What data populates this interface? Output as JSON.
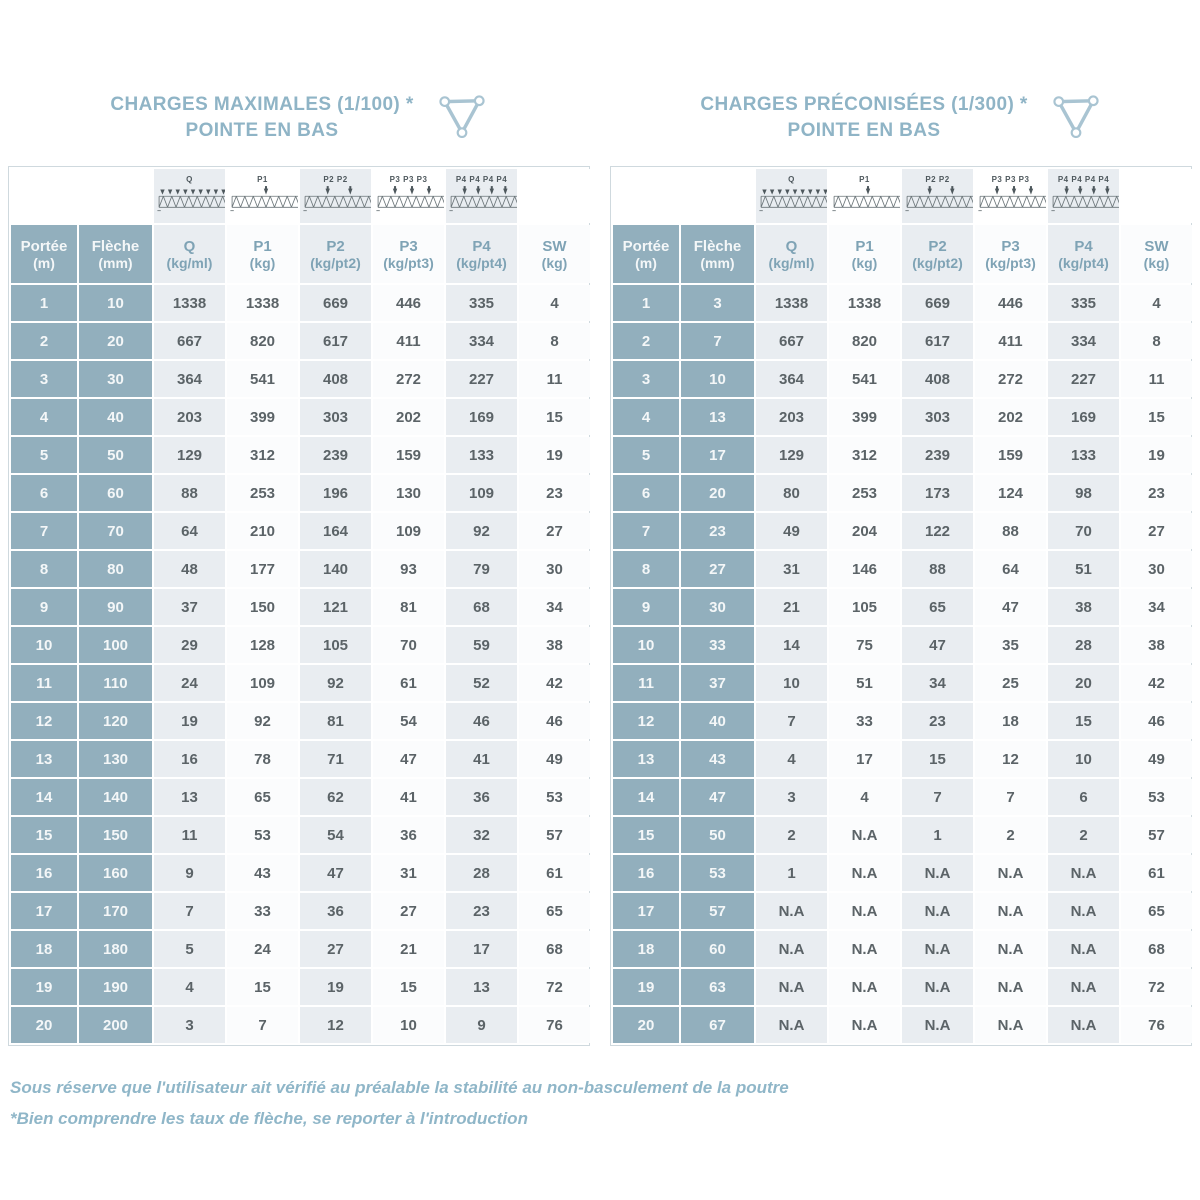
{
  "tables": [
    {
      "title_line1": "CHARGES MAXIMALES (1/100) *",
      "title_line2": "POINTE EN BAS",
      "load_icons": [
        {
          "label": "Q",
          "arrows": 0
        },
        {
          "label": "P1",
          "arrows": 1
        },
        {
          "label": "P2 P2",
          "arrows": 2
        },
        {
          "label": "P3 P3 P3",
          "arrows": 3
        },
        {
          "label": "P4 P4 P4 P4",
          "arrows": 4
        }
      ],
      "columns": [
        {
          "name": "Portée",
          "unit": "(m)"
        },
        {
          "name": "Flèche",
          "unit": "(mm)"
        },
        {
          "name": "Q",
          "unit": "(kg/ml)"
        },
        {
          "name": "P1",
          "unit": "(kg)"
        },
        {
          "name": "P2",
          "unit": "(kg/pt2)"
        },
        {
          "name": "P3",
          "unit": "(kg/pt3)"
        },
        {
          "name": "P4",
          "unit": "(kg/pt4)"
        },
        {
          "name": "SW",
          "unit": "(kg)"
        }
      ],
      "rows": [
        [
          1,
          10,
          1338,
          1338,
          669,
          446,
          335,
          4
        ],
        [
          2,
          20,
          667,
          820,
          617,
          411,
          334,
          8
        ],
        [
          3,
          30,
          364,
          541,
          408,
          272,
          227,
          11
        ],
        [
          4,
          40,
          203,
          399,
          303,
          202,
          169,
          15
        ],
        [
          5,
          50,
          129,
          312,
          239,
          159,
          133,
          19
        ],
        [
          6,
          60,
          88,
          253,
          196,
          130,
          109,
          23
        ],
        [
          7,
          70,
          64,
          210,
          164,
          109,
          92,
          27
        ],
        [
          8,
          80,
          48,
          177,
          140,
          93,
          79,
          30
        ],
        [
          9,
          90,
          37,
          150,
          121,
          81,
          68,
          34
        ],
        [
          10,
          100,
          29,
          128,
          105,
          70,
          59,
          38
        ],
        [
          11,
          110,
          24,
          109,
          92,
          61,
          52,
          42
        ],
        [
          12,
          120,
          19,
          92,
          81,
          54,
          46,
          46
        ],
        [
          13,
          130,
          16,
          78,
          71,
          47,
          41,
          49
        ],
        [
          14,
          140,
          13,
          65,
          62,
          41,
          36,
          53
        ],
        [
          15,
          150,
          11,
          53,
          54,
          36,
          32,
          57
        ],
        [
          16,
          160,
          9,
          43,
          47,
          31,
          28,
          61
        ],
        [
          17,
          170,
          7,
          33,
          36,
          27,
          23,
          65
        ],
        [
          18,
          180,
          5,
          24,
          27,
          21,
          17,
          68
        ],
        [
          19,
          190,
          4,
          15,
          19,
          15,
          13,
          72
        ],
        [
          20,
          200,
          3,
          7,
          12,
          10,
          9,
          76
        ]
      ]
    },
    {
      "title_line1": "CHARGES PRÉCONISÉES (1/300) *",
      "title_line2": "POINTE EN BAS",
      "load_icons": [
        {
          "label": "Q",
          "arrows": 0
        },
        {
          "label": "P1",
          "arrows": 1
        },
        {
          "label": "P2 P2",
          "arrows": 2
        },
        {
          "label": "P3 P3 P3",
          "arrows": 3
        },
        {
          "label": "P4 P4 P4 P4",
          "arrows": 4
        }
      ],
      "columns": [
        {
          "name": "Portée",
          "unit": "(m)"
        },
        {
          "name": "Flèche",
          "unit": "(mm)"
        },
        {
          "name": "Q",
          "unit": "(kg/ml)"
        },
        {
          "name": "P1",
          "unit": "(kg)"
        },
        {
          "name": "P2",
          "unit": "(kg/pt2)"
        },
        {
          "name": "P3",
          "unit": "(kg/pt3)"
        },
        {
          "name": "P4",
          "unit": "(kg/pt4)"
        },
        {
          "name": "SW",
          "unit": "(kg)"
        }
      ],
      "rows": [
        [
          1,
          3,
          1338,
          1338,
          669,
          446,
          335,
          4
        ],
        [
          2,
          7,
          667,
          820,
          617,
          411,
          334,
          8
        ],
        [
          3,
          10,
          364,
          541,
          408,
          272,
          227,
          11
        ],
        [
          4,
          13,
          203,
          399,
          303,
          202,
          169,
          15
        ],
        [
          5,
          17,
          129,
          312,
          239,
          159,
          133,
          19
        ],
        [
          6,
          20,
          80,
          253,
          173,
          124,
          98,
          23
        ],
        [
          7,
          23,
          49,
          204,
          122,
          88,
          70,
          27
        ],
        [
          8,
          27,
          31,
          146,
          88,
          64,
          51,
          30
        ],
        [
          9,
          30,
          21,
          105,
          65,
          47,
          38,
          34
        ],
        [
          10,
          33,
          14,
          75,
          47,
          35,
          28,
          38
        ],
        [
          11,
          37,
          10,
          51,
          34,
          25,
          20,
          42
        ],
        [
          12,
          40,
          7,
          33,
          23,
          18,
          15,
          46
        ],
        [
          13,
          43,
          4,
          17,
          15,
          12,
          10,
          49
        ],
        [
          14,
          47,
          3,
          4,
          7,
          7,
          6,
          53
        ],
        [
          15,
          50,
          2,
          "N.A",
          1,
          2,
          2,
          57
        ],
        [
          16,
          53,
          1,
          "N.A",
          "N.A",
          "N.A",
          "N.A",
          61
        ],
        [
          17,
          57,
          "N.A",
          "N.A",
          "N.A",
          "N.A",
          "N.A",
          65
        ],
        [
          18,
          60,
          "N.A",
          "N.A",
          "N.A",
          "N.A",
          "N.A",
          68
        ],
        [
          19,
          63,
          "N.A",
          "N.A",
          "N.A",
          "N.A",
          "N.A",
          72
        ],
        [
          20,
          67,
          "N.A",
          "N.A",
          "N.A",
          "N.A",
          "N.A",
          76
        ]
      ]
    }
  ],
  "footnotes": [
    "Sous réserve que l'utilisateur ait vérifié au préalable la stabilité au non-basculement de la poutre",
    "*Bien comprendre les taux de flèche, se reporter à l'introduction"
  ],
  "colors": {
    "header_blue": "#92afbd",
    "tint_column": "#e9edf1",
    "title_blue": "#8fb4c6",
    "value_text": "#5b6367",
    "footnote_blue": "#8fb6c8"
  }
}
